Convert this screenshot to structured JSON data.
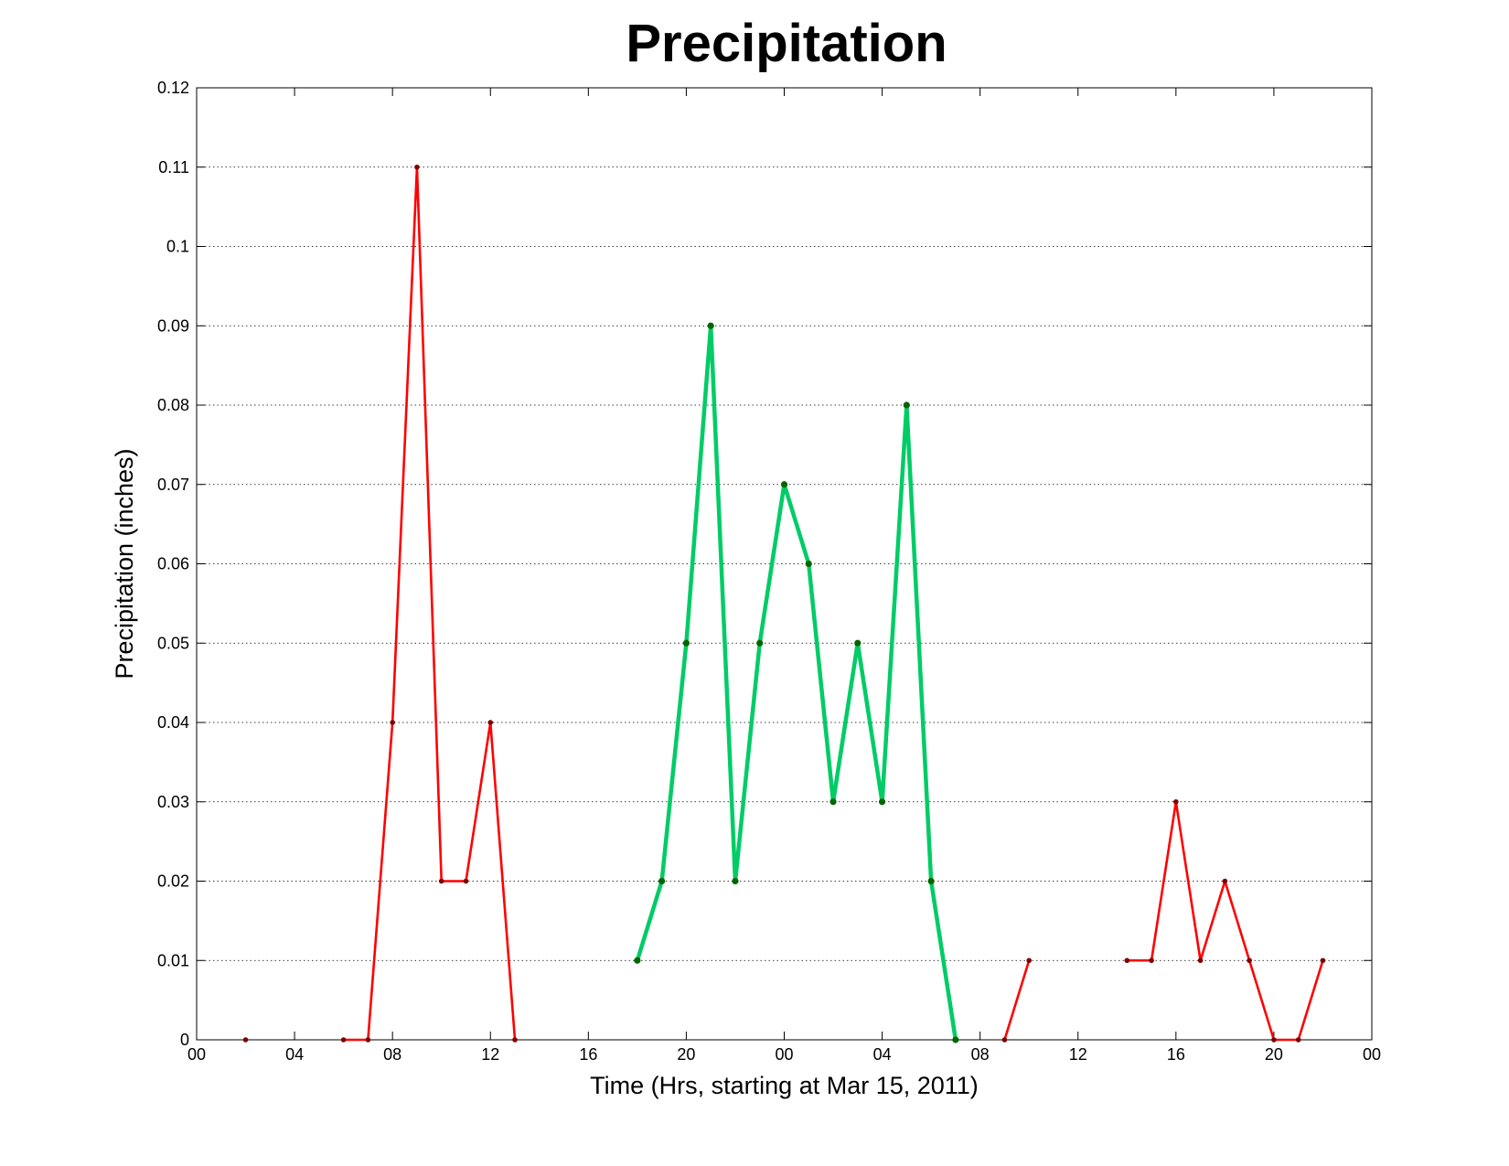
{
  "chart_data": {
    "type": "line",
    "title": "Precipitation",
    "xlabel": "Time (Hrs, starting at Mar 15, 2011)",
    "ylabel": "Precipitation (inches)",
    "x_unit": "hours",
    "xlim": [
      0,
      48
    ],
    "ylim": [
      0,
      0.12
    ],
    "grid": "y-dotted",
    "x_ticks": [
      {
        "value": 0,
        "label": "00"
      },
      {
        "value": 4,
        "label": "04"
      },
      {
        "value": 8,
        "label": "08"
      },
      {
        "value": 12,
        "label": "12"
      },
      {
        "value": 16,
        "label": "16"
      },
      {
        "value": 20,
        "label": "20"
      },
      {
        "value": 24,
        "label": "00"
      },
      {
        "value": 28,
        "label": "04"
      },
      {
        "value": 32,
        "label": "08"
      },
      {
        "value": 36,
        "label": "12"
      },
      {
        "value": 40,
        "label": "16"
      },
      {
        "value": 44,
        "label": "20"
      },
      {
        "value": 48,
        "label": "00"
      }
    ],
    "y_ticks": [
      {
        "value": 0,
        "label": "0"
      },
      {
        "value": 0.01,
        "label": "0.01"
      },
      {
        "value": 0.02,
        "label": "0.02"
      },
      {
        "value": 0.03,
        "label": "0.03"
      },
      {
        "value": 0.04,
        "label": "0.04"
      },
      {
        "value": 0.05,
        "label": "0.05"
      },
      {
        "value": 0.06,
        "label": "0.06"
      },
      {
        "value": 0.07,
        "label": "0.07"
      },
      {
        "value": 0.08,
        "label": "0.08"
      },
      {
        "value": 0.09,
        "label": "0.09"
      },
      {
        "value": 0.1,
        "label": "0.1"
      },
      {
        "value": 0.11,
        "label": "0.11"
      },
      {
        "value": 0.12,
        "label": "0.12"
      }
    ],
    "series": [
      {
        "color": "#ff0000",
        "marker_color": "#800000",
        "weight": "thin",
        "points": [
          [
            2,
            0
          ]
        ]
      },
      {
        "color": "#ff0000",
        "marker_color": "#800000",
        "weight": "thin",
        "points": [
          [
            6,
            0
          ],
          [
            7,
            0
          ],
          [
            8,
            0.04
          ],
          [
            9,
            0.11
          ],
          [
            10,
            0.02
          ],
          [
            11,
            0.02
          ],
          [
            12,
            0.04
          ],
          [
            13,
            0
          ]
        ]
      },
      {
        "color": "#00cc66",
        "marker_color": "#006600",
        "weight": "thick",
        "points": [
          [
            18,
            0.01
          ],
          [
            19,
            0.02
          ],
          [
            20,
            0.05
          ],
          [
            21,
            0.09
          ],
          [
            22,
            0.02
          ],
          [
            23,
            0.05
          ],
          [
            24,
            0.07
          ],
          [
            25,
            0.06
          ],
          [
            26,
            0.03
          ],
          [
            27,
            0.05
          ],
          [
            28,
            0.03
          ],
          [
            29,
            0.08
          ],
          [
            30,
            0.02
          ],
          [
            31,
            0
          ]
        ]
      },
      {
        "color": "#ff0000",
        "marker_color": "#800000",
        "weight": "thin",
        "points": [
          [
            33,
            0
          ],
          [
            34,
            0.01
          ]
        ]
      },
      {
        "color": "#ff0000",
        "marker_color": "#800000",
        "weight": "thin",
        "points": [
          [
            38,
            0.01
          ],
          [
            39,
            0.01
          ],
          [
            40,
            0.03
          ],
          [
            41,
            0.01
          ],
          [
            42,
            0.02
          ],
          [
            43,
            0.01
          ],
          [
            44,
            0
          ],
          [
            45,
            0
          ],
          [
            46,
            0.01
          ]
        ]
      }
    ]
  }
}
